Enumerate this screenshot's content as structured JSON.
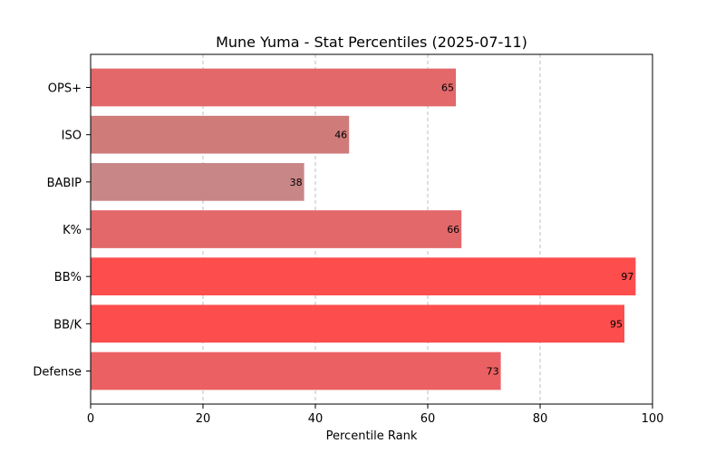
{
  "chart_data": {
    "type": "bar",
    "orientation": "horizontal",
    "title": "Mune Yuma - Stat Percentiles (2025-07-11)",
    "xlabel": "Percentile Rank",
    "ylabel": "",
    "xlim": [
      0,
      100
    ],
    "xticks": [
      0,
      20,
      40,
      60,
      80,
      100
    ],
    "grid": "vertical dashed",
    "categories": [
      "OPS+",
      "ISO",
      "BABIP",
      "K%",
      "BB%",
      "BB/K",
      "Defense"
    ],
    "values": [
      65,
      46,
      38,
      66,
      97,
      95,
      73
    ],
    "colors": [
      "#e2686a",
      "#cf7b7a",
      "#c98686",
      "#e2686a",
      "#fd4d4d",
      "#fd4d4d",
      "#eb6163"
    ],
    "show_value_labels": true
  }
}
